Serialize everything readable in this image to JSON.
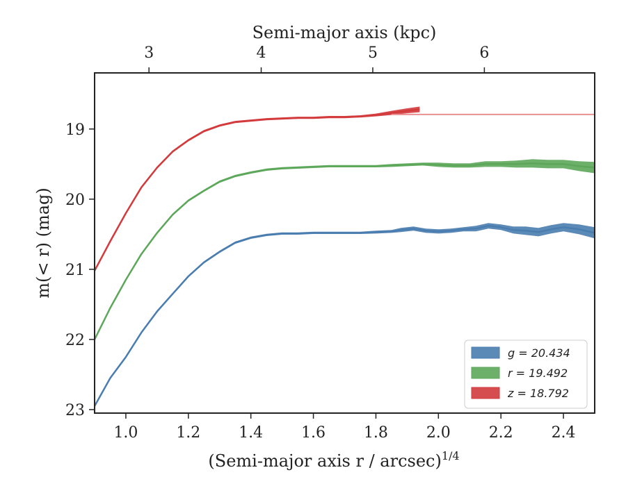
{
  "chart_data": {
    "type": "line",
    "title": "",
    "xlabel": "(Semi-major axis r / arcsec)",
    "xlabel_superscript": "1/4",
    "ylabel": "m(< r) (mag)",
    "x2label": "Semi-major axis (kpc)",
    "xlim": [
      0.9,
      2.5
    ],
    "ylim": [
      23.05,
      18.2
    ],
    "y_inverted": true,
    "xticks": [
      1.0,
      1.2,
      1.4,
      1.6,
      1.8,
      2.0,
      2.2,
      2.4
    ],
    "xtick_labels": [
      "1.0",
      "1.2",
      "1.4",
      "1.6",
      "1.8",
      "2.0",
      "2.2",
      "2.4"
    ],
    "yticks": [
      19,
      20,
      21,
      22,
      23
    ],
    "ytick_labels": [
      "19",
      "20",
      "21",
      "22",
      "23"
    ],
    "x2ticks": [
      {
        "value": 3,
        "label": "3",
        "x": 1.074
      },
      {
        "value": 4,
        "label": "4",
        "x": 1.433
      },
      {
        "value": 5,
        "label": "5",
        "x": 1.79
      },
      {
        "value": 6,
        "label": "6",
        "x": 2.147
      }
    ],
    "grid": false,
    "legend_position": "lower-right",
    "series": [
      {
        "name": "g = 20.434",
        "color": "#4a7daf",
        "x": [
          0.9,
          0.95,
          1.0,
          1.05,
          1.1,
          1.15,
          1.2,
          1.25,
          1.3,
          1.35,
          1.4,
          1.45,
          1.5,
          1.55,
          1.6,
          1.65,
          1.7,
          1.75,
          1.8,
          1.85,
          1.88,
          1.92,
          1.96,
          2.0,
          2.04,
          2.08,
          2.12,
          2.16,
          2.2,
          2.24,
          2.28,
          2.32,
          2.36,
          2.4,
          2.45,
          2.5
        ],
        "values": [
          22.95,
          22.55,
          22.25,
          21.9,
          21.6,
          21.35,
          21.1,
          20.9,
          20.75,
          20.62,
          20.55,
          20.51,
          20.49,
          20.49,
          20.48,
          20.48,
          20.48,
          20.48,
          20.47,
          20.46,
          20.44,
          20.42,
          20.45,
          20.46,
          20.45,
          20.43,
          20.42,
          20.38,
          20.4,
          20.44,
          20.45,
          20.47,
          20.43,
          20.4,
          20.43,
          20.48
        ],
        "band": [
          0.01,
          0.01,
          0.01,
          0.01,
          0.01,
          0.01,
          0.01,
          0.01,
          0.01,
          0.01,
          0.01,
          0.01,
          0.01,
          0.01,
          0.01,
          0.01,
          0.01,
          0.015,
          0.02,
          0.02,
          0.03,
          0.03,
          0.03,
          0.03,
          0.03,
          0.03,
          0.04,
          0.04,
          0.04,
          0.05,
          0.06,
          0.06,
          0.06,
          0.06,
          0.07,
          0.08
        ]
      },
      {
        "name": "r = 19.492",
        "color": "#5ca75a",
        "x": [
          0.9,
          0.95,
          1.0,
          1.05,
          1.1,
          1.15,
          1.2,
          1.25,
          1.3,
          1.35,
          1.4,
          1.45,
          1.5,
          1.55,
          1.6,
          1.65,
          1.7,
          1.75,
          1.8,
          1.85,
          1.9,
          1.95,
          2.0,
          2.05,
          2.1,
          2.15,
          2.2,
          2.25,
          2.3,
          2.35,
          2.4,
          2.45,
          2.5
        ],
        "values": [
          22.0,
          21.55,
          21.15,
          20.78,
          20.48,
          20.22,
          20.02,
          19.88,
          19.75,
          19.67,
          19.62,
          19.58,
          19.56,
          19.55,
          19.54,
          19.53,
          19.53,
          19.53,
          19.53,
          19.52,
          19.51,
          19.5,
          19.51,
          19.52,
          19.52,
          19.5,
          19.5,
          19.5,
          19.49,
          19.5,
          19.5,
          19.53,
          19.55
        ],
        "band": [
          0.01,
          0.01,
          0.01,
          0.01,
          0.01,
          0.01,
          0.01,
          0.01,
          0.01,
          0.01,
          0.01,
          0.01,
          0.01,
          0.01,
          0.01,
          0.01,
          0.01,
          0.01,
          0.01,
          0.02,
          0.02,
          0.02,
          0.03,
          0.03,
          0.03,
          0.04,
          0.04,
          0.05,
          0.06,
          0.06,
          0.06,
          0.07,
          0.08
        ]
      },
      {
        "name": "z = 18.792",
        "color": "#d23a3c",
        "x": [
          0.9,
          0.95,
          1.0,
          1.05,
          1.1,
          1.15,
          1.2,
          1.25,
          1.3,
          1.35,
          1.4,
          1.45,
          1.5,
          1.55,
          1.6,
          1.65,
          1.7,
          1.75,
          1.8,
          1.85,
          1.9,
          1.94
        ],
        "values": [
          21.02,
          20.6,
          20.2,
          19.83,
          19.55,
          19.32,
          19.16,
          19.03,
          18.95,
          18.9,
          18.88,
          18.86,
          18.85,
          18.84,
          18.84,
          18.83,
          18.83,
          18.82,
          18.8,
          18.77,
          18.74,
          18.72
        ],
        "band": [
          0.01,
          0.01,
          0.01,
          0.01,
          0.01,
          0.01,
          0.01,
          0.01,
          0.01,
          0.01,
          0.01,
          0.01,
          0.01,
          0.01,
          0.01,
          0.01,
          0.01,
          0.015,
          0.02,
          0.03,
          0.035,
          0.04
        ]
      }
    ],
    "reference_lines": [
      {
        "series": "z = 18.792",
        "y": 18.792,
        "x_from": 1.85,
        "x_to": 2.5,
        "color": "#e88a8b"
      }
    ]
  }
}
